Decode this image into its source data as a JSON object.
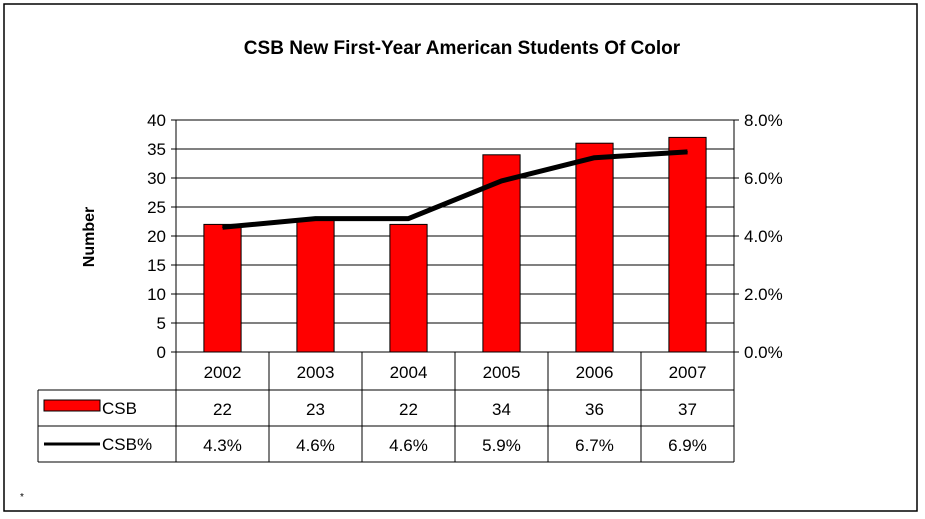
{
  "chart_data": {
    "type": "bar",
    "title": "CSB New First-Year American Students Of Color",
    "ylabel": "Number",
    "categories": [
      "2002",
      "2003",
      "2004",
      "2005",
      "2006",
      "2007"
    ],
    "ylim": [
      0,
      40
    ],
    "y_ticks": [
      "0",
      "5",
      "10",
      "15",
      "20",
      "25",
      "30",
      "35",
      "40"
    ],
    "y2lim": [
      0,
      8
    ],
    "y2_ticks": [
      "0.0%",
      "2.0%",
      "4.0%",
      "6.0%",
      "8.0%"
    ],
    "grid": true,
    "legend": "data-table",
    "series": [
      {
        "name": "CSB",
        "type": "bar",
        "axis": "left",
        "color": "#ff0000",
        "values": [
          22,
          23,
          22,
          34,
          36,
          37
        ],
        "labels": [
          "22",
          "23",
          "22",
          "34",
          "36",
          "37"
        ]
      },
      {
        "name": "CSB%",
        "type": "line",
        "axis": "right",
        "color": "#000000",
        "values": [
          4.3,
          4.6,
          4.6,
          5.9,
          6.7,
          6.9
        ],
        "labels": [
          "4.3%",
          "4.6%",
          "4.6%",
          "5.9%",
          "6.7%",
          "6.9%"
        ]
      }
    ]
  },
  "footnote": "*"
}
